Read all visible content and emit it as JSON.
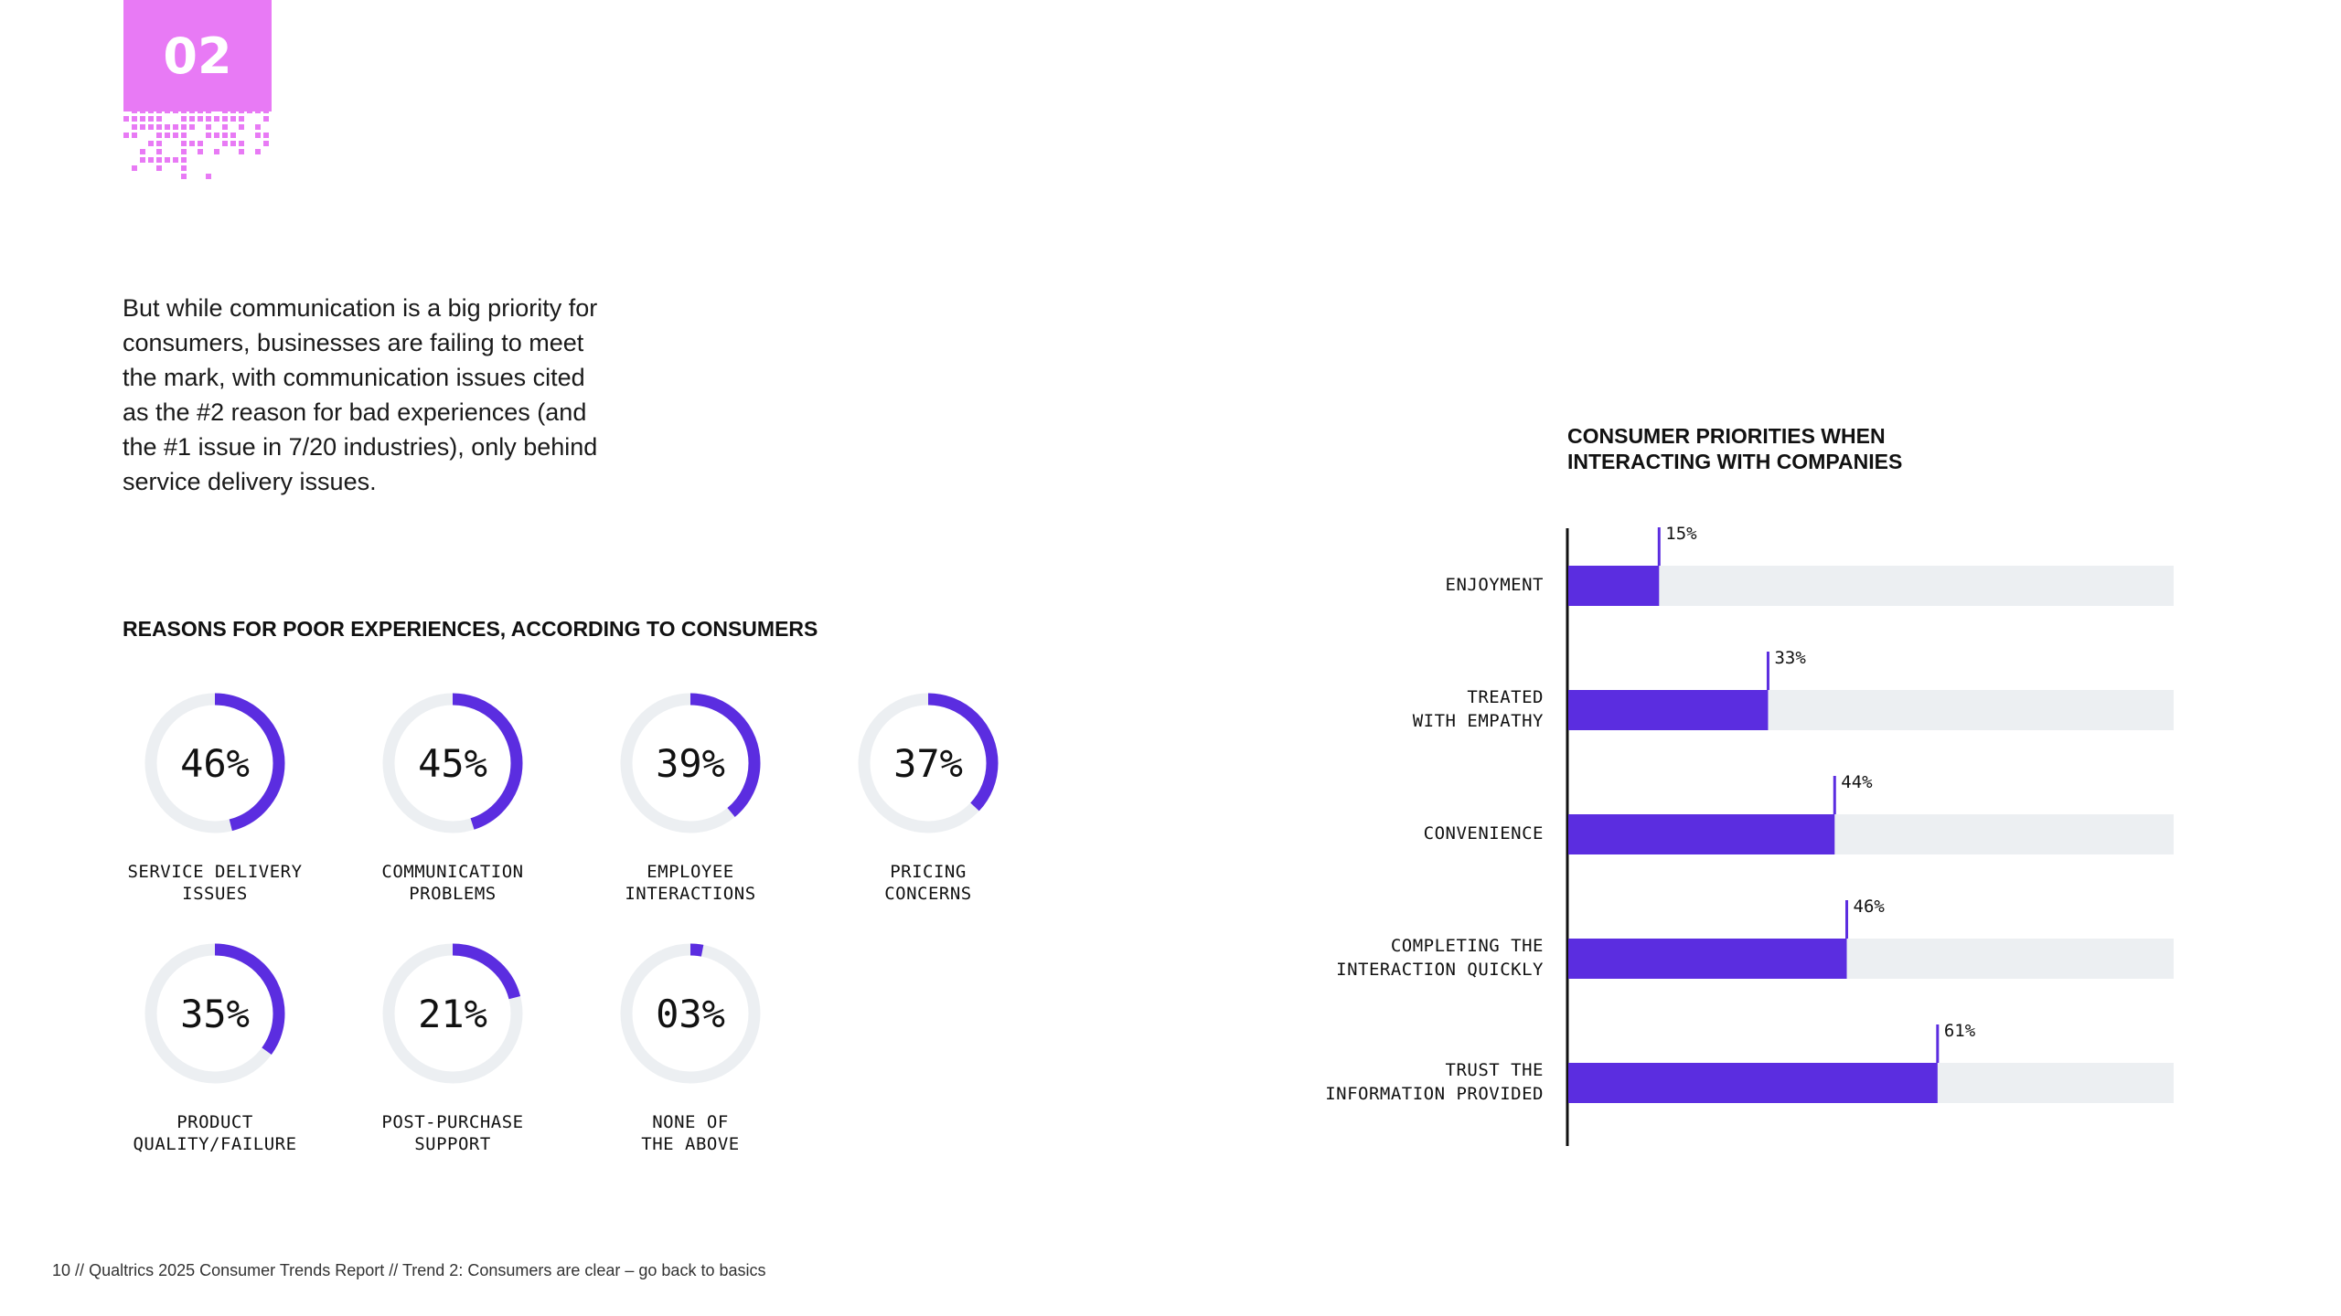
{
  "section": {
    "number": "02",
    "accent": "#e87af5"
  },
  "intro_text": "But while communication is a big priority for consumers, businesses are failing to meet the mark, with communication issues cited as the #2 reason for bad experiences (and the #1 issue in 7/20 industries), only behind service delivery issues.",
  "colors": {
    "primary": "#5b2de0",
    "track": "#eceff2",
    "text": "#111111"
  },
  "chart_data": [
    {
      "type": "pie",
      "title": "REASONS FOR POOR EXPERIENCES, ACCORDING TO CONSUMERS",
      "unit": "%",
      "categories": [
        "SERVICE DELIVERY ISSUES",
        "COMMUNICATION PROBLEMS",
        "EMPLOYEE INTERACTIONS",
        "PRICING CONCERNS",
        "PRODUCT QUALITY/FAILURE",
        "POST-PURCHASE SUPPORT",
        "NONE OF THE ABOVE"
      ],
      "label_lines": [
        [
          "SERVICE DELIVERY",
          "ISSUES"
        ],
        [
          "COMMUNICATION",
          "PROBLEMS"
        ],
        [
          "EMPLOYEE",
          "INTERACTIONS"
        ],
        [
          "PRICING",
          "CONCERNS"
        ],
        [
          "PRODUCT",
          "QUALITY/FAILURE"
        ],
        [
          "POST-PURCHASE",
          "SUPPORT"
        ],
        [
          "NONE OF",
          "THE ABOVE"
        ]
      ],
      "values": [
        46,
        45,
        39,
        37,
        35,
        21,
        3
      ],
      "value_labels": [
        "46%",
        "45%",
        "39%",
        "37%",
        "35%",
        "21%",
        "03%"
      ]
    },
    {
      "type": "bar",
      "orientation": "horizontal",
      "title": "CONSUMER PRIORITIES WHEN INTERACTING WITH COMPANIES",
      "categories": [
        "ENJOYMENT",
        "TREATED WITH EMPATHY",
        "CONVENIENCE",
        "COMPLETING THE INTERACTION QUICKLY",
        "TRUST THE INFORMATION PROVIDED"
      ],
      "label_lines": [
        [
          "ENJOYMENT"
        ],
        [
          "TREATED",
          "WITH EMPATHY"
        ],
        [
          "CONVENIENCE"
        ],
        [
          "COMPLETING THE",
          "INTERACTION QUICKLY"
        ],
        [
          "TRUST THE",
          "INFORMATION PROVIDED"
        ]
      ],
      "values": [
        15,
        33,
        44,
        46,
        61
      ],
      "value_labels": [
        "15%",
        "33%",
        "44%",
        "46%",
        "61%"
      ],
      "xlim": [
        0,
        100
      ]
    }
  ],
  "footer": {
    "page": "10",
    "separator": "//",
    "report": "Qualtrics 2025 Consumer Trends Report",
    "section": "Trend 2: Consumers are clear – go back to basics"
  }
}
